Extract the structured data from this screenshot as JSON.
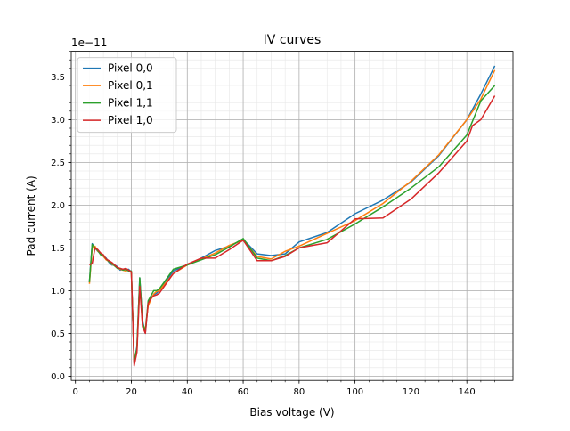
{
  "chart_data": {
    "type": "line",
    "title": "IV curves",
    "xlabel": "Bias voltage (V)",
    "ylabel": "Pad current (A)",
    "y_offset_label": "1e−11",
    "y_unit_scale": 1e-11,
    "xlim": [
      -1.5,
      156.5
    ],
    "ylim": [
      -0.05,
      3.8
    ],
    "x_major_ticks": [
      0,
      20,
      40,
      60,
      80,
      100,
      120,
      140
    ],
    "x_tick_labels": [
      "0",
      "20",
      "40",
      "60",
      "80",
      "100",
      "120",
      "140"
    ],
    "x_minor_step": 5,
    "y_major_ticks": [
      0.0,
      0.5,
      1.0,
      1.5,
      2.0,
      2.5,
      3.0,
      3.5
    ],
    "y_tick_labels": [
      "0.0",
      "0.5",
      "1.0",
      "1.5",
      "2.0",
      "2.5",
      "3.0",
      "3.5"
    ],
    "y_minor_step": 0.1,
    "grid": "major and minor",
    "legend_position": "upper-left",
    "series": [
      {
        "name": "Pixel 0,0",
        "color": "#1f77b4",
        "x": [
          5,
          6,
          7,
          8,
          9,
          10,
          11,
          12,
          13,
          14,
          15,
          16,
          17,
          18,
          19,
          20,
          21,
          22,
          23,
          24,
          25,
          26,
          27,
          28,
          29,
          30,
          35,
          40,
          45,
          50,
          55,
          60,
          65,
          70,
          75,
          80,
          90,
          100,
          110,
          120,
          130,
          140,
          145,
          150
        ],
        "y": [
          1.1,
          1.55,
          1.5,
          1.46,
          1.43,
          1.4,
          1.38,
          1.33,
          1.3,
          1.3,
          1.28,
          1.24,
          1.25,
          1.24,
          1.25,
          1.22,
          0.15,
          0.35,
          1.15,
          0.65,
          0.5,
          0.85,
          0.92,
          0.95,
          0.97,
          1.0,
          1.23,
          1.3,
          1.38,
          1.47,
          1.52,
          1.6,
          1.43,
          1.41,
          1.43,
          1.57,
          1.68,
          1.9,
          2.06,
          2.27,
          2.58,
          3.0,
          3.3,
          3.63
        ]
      },
      {
        "name": "Pixel 0,1",
        "color": "#ff7f0e",
        "x": [
          5,
          6,
          7,
          8,
          9,
          10,
          11,
          12,
          13,
          14,
          15,
          16,
          17,
          18,
          19,
          20,
          21,
          22,
          23,
          24,
          25,
          26,
          27,
          28,
          29,
          30,
          35,
          40,
          45,
          50,
          55,
          60,
          65,
          70,
          75,
          80,
          90,
          100,
          110,
          120,
          130,
          140,
          145,
          150
        ],
        "y": [
          1.08,
          1.5,
          1.52,
          1.46,
          1.44,
          1.4,
          1.36,
          1.34,
          1.31,
          1.29,
          1.27,
          1.25,
          1.24,
          1.23,
          1.24,
          1.21,
          0.18,
          0.32,
          1.12,
          0.6,
          0.55,
          0.82,
          0.9,
          0.96,
          0.99,
          1.0,
          1.2,
          1.3,
          1.37,
          1.44,
          1.53,
          1.59,
          1.4,
          1.37,
          1.46,
          1.52,
          1.67,
          1.82,
          2.02,
          2.28,
          2.59,
          3.0,
          3.24,
          3.58
        ]
      },
      {
        "name": "Pixel 1,1",
        "color": "#2ca02c",
        "x": [
          5,
          6,
          7,
          8,
          9,
          10,
          11,
          12,
          13,
          14,
          15,
          16,
          17,
          18,
          19,
          20,
          21,
          22,
          23,
          24,
          25,
          26,
          27,
          28,
          29,
          30,
          35,
          40,
          45,
          50,
          55,
          60,
          65,
          70,
          75,
          80,
          90,
          100,
          110,
          120,
          130,
          140,
          145,
          150
        ],
        "y": [
          1.1,
          1.54,
          1.5,
          1.47,
          1.42,
          1.41,
          1.37,
          1.34,
          1.32,
          1.29,
          1.26,
          1.26,
          1.24,
          1.25,
          1.23,
          1.23,
          0.16,
          0.33,
          1.15,
          0.62,
          0.52,
          0.88,
          0.94,
          1.0,
          1.0,
          1.02,
          1.25,
          1.3,
          1.36,
          1.42,
          1.51,
          1.61,
          1.38,
          1.35,
          1.41,
          1.5,
          1.6,
          1.78,
          1.98,
          2.2,
          2.45,
          2.82,
          3.22,
          3.4
        ]
      },
      {
        "name": "Pixel 1,0",
        "color": "#d62728",
        "x": [
          5,
          6,
          7,
          8,
          9,
          10,
          11,
          12,
          13,
          14,
          15,
          16,
          17,
          18,
          19,
          20,
          21,
          22,
          23,
          24,
          25,
          26,
          27,
          28,
          29,
          30,
          35,
          40,
          45,
          50,
          55,
          60,
          65,
          70,
          75,
          80,
          90,
          100,
          110,
          120,
          130,
          140,
          142,
          145,
          150
        ],
        "y": [
          1.3,
          1.32,
          1.5,
          1.48,
          1.44,
          1.42,
          1.37,
          1.35,
          1.33,
          1.3,
          1.27,
          1.26,
          1.25,
          1.26,
          1.24,
          1.22,
          0.12,
          0.28,
          1.05,
          0.58,
          0.5,
          0.85,
          0.91,
          0.94,
          0.95,
          0.97,
          1.2,
          1.31,
          1.38,
          1.38,
          1.48,
          1.59,
          1.35,
          1.35,
          1.4,
          1.5,
          1.56,
          1.84,
          1.85,
          2.07,
          2.38,
          2.75,
          2.93,
          3.0,
          3.28
        ]
      }
    ]
  }
}
